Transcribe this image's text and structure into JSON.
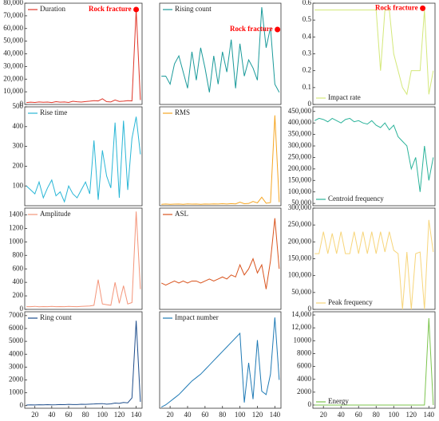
{
  "chart_data": [
    {
      "type": "line",
      "legend": "upper left",
      "xlim": [
        8,
        147
      ],
      "ylim": [
        0,
        80000
      ],
      "x": [
        10,
        15,
        20,
        25,
        30,
        35,
        40,
        45,
        50,
        55,
        60,
        65,
        70,
        75,
        80,
        85,
        90,
        95,
        100,
        105,
        110,
        115,
        120,
        125,
        130,
        135,
        140,
        145
      ],
      "yticks": [
        0,
        {
          "value": 10000,
          "label": "10,000"
        },
        {
          "value": 20000,
          "label": "20,000"
        },
        {
          "value": 30000,
          "label": "30,000"
        },
        {
          "value": 40000,
          "label": "40,000"
        },
        {
          "value": 50000,
          "label": "50,000"
        },
        {
          "value": 60000,
          "label": "60,000"
        },
        {
          "value": 70000,
          "label": "70,000"
        },
        {
          "value": 80000,
          "label": "80,000"
        }
      ],
      "series": [
        {
          "name": "Duration",
          "color": "#e0372a",
          "values": [
            1500,
            1800,
            1600,
            2000,
            1700,
            1900,
            1500,
            2200,
            1800,
            2000,
            1600,
            2500,
            2100,
            1900,
            2300,
            2600,
            3000,
            2800,
            4500,
            2200,
            2000,
            3500,
            2400,
            2600,
            3000,
            2800,
            75000,
            3500
          ]
        }
      ],
      "annotations": [
        {
          "text": "Rock fracture",
          "x": 140,
          "y": 75000,
          "color": "#ff0000"
        }
      ]
    },
    {
      "type": "line",
      "legend": "upper left",
      "xlim": [
        8,
        147
      ],
      "ylim": [
        0,
        25
      ],
      "x": [
        10,
        15,
        20,
        25,
        30,
        35,
        40,
        45,
        50,
        55,
        60,
        65,
        70,
        75,
        80,
        85,
        90,
        95,
        100,
        105,
        110,
        115,
        120,
        125,
        130,
        135,
        140,
        145
      ],
      "series": [
        {
          "name": "Rising count",
          "color": "#1a9a9a",
          "values": [
            7,
            7,
            5,
            10,
            12,
            8,
            4,
            13,
            6,
            14,
            9,
            3,
            12,
            5,
            13,
            8,
            16,
            4,
            15,
            7,
            11,
            9,
            6,
            24,
            14,
            19,
            5,
            3
          ]
        }
      ],
      "annotations": [
        {
          "text": "Rock fracture",
          "x": 143,
          "y": 18.5,
          "color": "#ff0000"
        }
      ]
    },
    {
      "type": "line",
      "legend": "lower left",
      "xlim": [
        8,
        147
      ],
      "ylim": [
        0,
        0.6
      ],
      "x": [
        10,
        15,
        20,
        25,
        30,
        35,
        40,
        45,
        50,
        55,
        60,
        65,
        70,
        75,
        80,
        85,
        90,
        95,
        100,
        105,
        110,
        115,
        120,
        125,
        130,
        135,
        140,
        145
      ],
      "yticks": [
        0,
        0.1,
        0.2,
        0.3,
        0.4,
        0.5,
        0.6
      ],
      "series": [
        {
          "name": "Impact rate",
          "color": "#d4e87a",
          "values": [
            0.56,
            0.56,
            0.56,
            0.56,
            0.56,
            0.56,
            0.56,
            0.56,
            0.56,
            0.56,
            0.56,
            0.56,
            0.56,
            0.56,
            0.56,
            0.2,
            0.56,
            0.56,
            0.3,
            0.2,
            0.1,
            0.06,
            0.2,
            0.2,
            0.2,
            0.56,
            0.06,
            0.2
          ]
        }
      ],
      "annotations": [
        {
          "text": "Rock fracture",
          "x": 133,
          "y": 0.57,
          "color": "#ff0000"
        }
      ]
    },
    {
      "type": "line",
      "legend": "upper left",
      "xlim": [
        8,
        147
      ],
      "ylim": [
        0,
        500
      ],
      "x": [
        10,
        15,
        20,
        25,
        30,
        35,
        40,
        45,
        50,
        55,
        60,
        65,
        70,
        75,
        80,
        85,
        90,
        95,
        100,
        105,
        110,
        115,
        120,
        125,
        130,
        135,
        140,
        145
      ],
      "yticks": [
        100,
        200,
        300,
        400,
        500
      ],
      "series": [
        {
          "name": "Rise time",
          "color": "#29b6d6",
          "values": [
            100,
            80,
            60,
            120,
            40,
            90,
            130,
            50,
            70,
            20,
            100,
            60,
            40,
            80,
            120,
            60,
            330,
            30,
            280,
            150,
            90,
            420,
            40,
            430,
            80,
            340,
            450,
            260
          ]
        }
      ]
    },
    {
      "type": "line",
      "legend": "upper left",
      "xlim": [
        8,
        147
      ],
      "ylim": [
        0,
        700
      ],
      "x": [
        10,
        15,
        20,
        25,
        30,
        35,
        40,
        45,
        50,
        55,
        60,
        65,
        70,
        75,
        80,
        85,
        90,
        95,
        100,
        105,
        110,
        115,
        120,
        125,
        130,
        135,
        140,
        145
      ],
      "series": [
        {
          "name": "RMS",
          "color": "#f5a623",
          "values": [
            10,
            12,
            10,
            11,
            12,
            10,
            13,
            11,
            12,
            10,
            12,
            11,
            13,
            12,
            14,
            12,
            15,
            13,
            25,
            14,
            16,
            30,
            20,
            60,
            18,
            22,
            640,
            25
          ]
        }
      ]
    },
    {
      "type": "line",
      "legend": "lower left",
      "xlim": [
        8,
        147
      ],
      "ylim": [
        40000,
        470000
      ],
      "x": [
        10,
        15,
        20,
        25,
        30,
        35,
        40,
        45,
        50,
        55,
        60,
        65,
        70,
        75,
        80,
        85,
        90,
        95,
        100,
        105,
        110,
        115,
        120,
        125,
        130,
        135,
        140,
        145
      ],
      "yticks": [
        {
          "value": 50000,
          "label": "50,000"
        },
        {
          "value": 100000,
          "label": "100,000"
        },
        {
          "value": 150000,
          "label": "150,000"
        },
        {
          "value": 200000,
          "label": "200,000"
        },
        {
          "value": 250000,
          "label": "250,000"
        },
        {
          "value": 300000,
          "label": "300,000"
        },
        {
          "value": 350000,
          "label": "350,000"
        },
        {
          "value": 400000,
          "label": "400,000"
        },
        {
          "value": 450000,
          "label": "450,000"
        }
      ],
      "series": [
        {
          "name": "Centroid frequency",
          "color": "#2bb39a",
          "values": [
            410000,
            420000,
            415000,
            405000,
            420000,
            410000,
            400000,
            415000,
            420000,
            405000,
            410000,
            400000,
            395000,
            410000,
            390000,
            380000,
            400000,
            370000,
            390000,
            340000,
            320000,
            300000,
            200000,
            250000,
            100000,
            300000,
            150000,
            250000
          ]
        }
      ]
    },
    {
      "type": "line",
      "legend": "upper left",
      "xlim": [
        8,
        147
      ],
      "ylim": [
        0,
        1500
      ],
      "x": [
        10,
        15,
        20,
        25,
        30,
        35,
        40,
        45,
        50,
        55,
        60,
        65,
        70,
        75,
        80,
        85,
        90,
        95,
        100,
        105,
        110,
        115,
        120,
        125,
        130,
        135,
        140,
        145
      ],
      "yticks": [
        0,
        200,
        400,
        600,
        800,
        1000,
        1200,
        1400
      ],
      "series": [
        {
          "name": "Amplitude",
          "color": "#f4957a",
          "values": [
            40,
            40,
            45,
            38,
            42,
            40,
            45,
            40,
            42,
            40,
            45,
            42,
            40,
            45,
            48,
            50,
            60,
            440,
            80,
            70,
            60,
            400,
            90,
            350,
            80,
            100,
            1450,
            300
          ]
        }
      ]
    },
    {
      "type": "line",
      "legend": "upper left",
      "xlim": [
        8,
        147
      ],
      "ylim": [
        20,
        70
      ],
      "x": [
        10,
        15,
        20,
        25,
        30,
        35,
        40,
        45,
        50,
        55,
        60,
        65,
        70,
        75,
        80,
        85,
        90,
        95,
        100,
        105,
        110,
        115,
        120,
        125,
        130,
        135,
        140,
        145
      ],
      "series": [
        {
          "name": "ASL",
          "color": "#d9541e",
          "values": [
            33,
            32,
            33,
            34,
            33,
            34,
            33,
            34,
            34,
            33,
            34,
            35,
            34,
            35,
            36,
            35,
            37,
            36,
            42,
            37,
            40,
            45,
            38,
            42,
            30,
            44,
            65,
            40
          ]
        }
      ]
    },
    {
      "type": "line",
      "legend": "lower left",
      "xlim": [
        8,
        147
      ],
      "ylim": [
        0,
        300000
      ],
      "x": [
        10,
        15,
        20,
        25,
        30,
        35,
        40,
        45,
        50,
        55,
        60,
        65,
        70,
        75,
        80,
        85,
        90,
        95,
        100,
        105,
        110,
        115,
        120,
        125,
        130,
        135,
        140,
        145
      ],
      "yticks": [
        0,
        {
          "value": 50000,
          "label": "50,000"
        },
        {
          "value": 100000,
          "label": "100,000"
        },
        {
          "value": 150000,
          "label": "150,000"
        },
        {
          "value": 200000,
          "label": "200,000"
        },
        {
          "value": 250000,
          "label": "250,000"
        },
        {
          "value": 300000,
          "label": "300,000"
        }
      ],
      "series": [
        {
          "name": "Peak frequency",
          "color": "#f7d57a",
          "values": [
            165000,
            165000,
            230000,
            165000,
            225000,
            165000,
            230000,
            165000,
            165000,
            230000,
            165000,
            230000,
            165000,
            230000,
            165000,
            230000,
            170000,
            230000,
            175000,
            165000,
            0,
            170000,
            0,
            165000,
            170000,
            0,
            265000,
            170000
          ]
        }
      ]
    },
    {
      "type": "line",
      "legend": "upper left",
      "xlim": [
        8,
        147
      ],
      "ylim": [
        -200,
        7300
      ],
      "x": [
        10,
        15,
        20,
        25,
        30,
        35,
        40,
        45,
        50,
        55,
        60,
        65,
        70,
        75,
        80,
        85,
        90,
        95,
        100,
        105,
        110,
        115,
        120,
        125,
        130,
        135,
        140,
        145
      ],
      "yticks": [
        0,
        1000,
        2000,
        3000,
        4000,
        5000,
        6000,
        7000
      ],
      "xticks": [
        20,
        40,
        60,
        80,
        100,
        120,
        140
      ],
      "series": [
        {
          "name": "Ring count",
          "color": "#1f4e8c",
          "values": [
            50,
            60,
            55,
            70,
            60,
            80,
            65,
            70,
            90,
            80,
            100,
            85,
            90,
            110,
            100,
            120,
            130,
            150,
            160,
            120,
            140,
            200,
            180,
            250,
            220,
            600,
            6600,
            300
          ]
        }
      ]
    },
    {
      "type": "line",
      "legend": "upper left",
      "xlim": [
        8,
        147
      ],
      "ylim": [
        0,
        85
      ],
      "x": [
        10,
        15,
        20,
        25,
        30,
        35,
        40,
        45,
        50,
        55,
        60,
        65,
        70,
        75,
        80,
        85,
        90,
        95,
        100,
        105,
        110,
        115,
        120,
        125,
        130,
        135,
        140,
        145
      ],
      "xticks": [
        20,
        40,
        60,
        80,
        100,
        120,
        140
      ],
      "series": [
        {
          "name": "Impact number",
          "color": "#1f7ab5",
          "values": [
            1,
            3,
            6,
            9,
            12,
            16,
            20,
            24,
            27,
            30,
            34,
            38,
            42,
            46,
            50,
            54,
            58,
            62,
            66,
            5,
            40,
            8,
            60,
            15,
            12,
            30,
            80,
            25
          ]
        }
      ]
    },
    {
      "type": "line",
      "legend": "lower left",
      "xlim": [
        8,
        147
      ],
      "ylim": [
        -500,
        14500
      ],
      "x": [
        10,
        15,
        20,
        25,
        30,
        35,
        40,
        45,
        50,
        55,
        60,
        65,
        70,
        75,
        80,
        85,
        90,
        95,
        100,
        105,
        110,
        115,
        120,
        125,
        130,
        135,
        140,
        145
      ],
      "yticks": [
        0,
        2000,
        4000,
        6000,
        8000,
        10000,
        {
          "value": 12000,
          "label": "12,000"
        },
        {
          "value": 14000,
          "label": "14,000"
        }
      ],
      "xticks": [
        20,
        40,
        60,
        80,
        100,
        120,
        140
      ],
      "series": [
        {
          "name": "Energy",
          "color": "#7cc44e",
          "values": [
            0,
            0,
            0,
            0,
            0,
            0,
            0,
            0,
            0,
            0,
            0,
            0,
            0,
            0,
            0,
            0,
            0,
            0,
            0,
            0,
            0,
            0,
            0,
            0,
            0,
            0,
            13500,
            0
          ]
        }
      ]
    }
  ]
}
